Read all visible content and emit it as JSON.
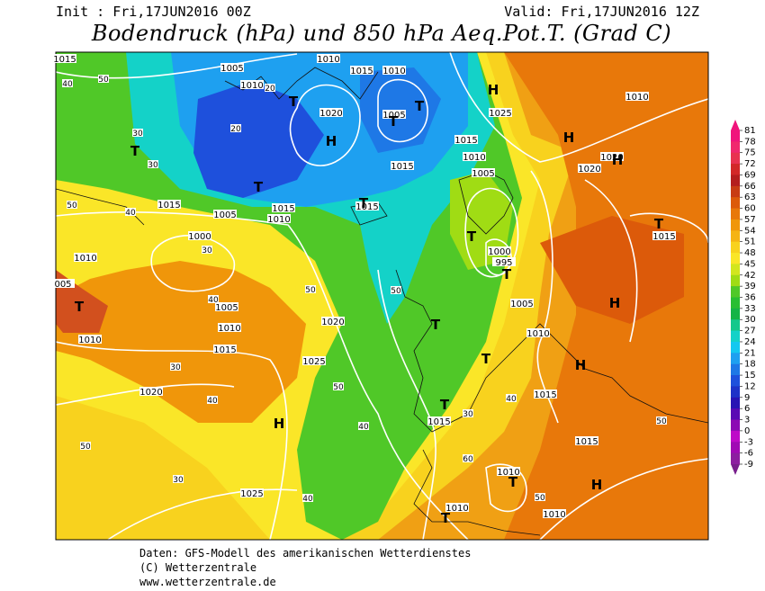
{
  "header": {
    "init": "Init : Fri,17JUN2016 00Z",
    "valid": "Valid: Fri,17JUN2016 12Z",
    "title": "Bodendruck (hPa) und 850 hPa Aeq.Pot.T. (Grad C)"
  },
  "legend": {
    "labels": [
      81,
      78,
      75,
      72,
      69,
      66,
      63,
      60,
      57,
      54,
      51,
      48,
      45,
      42,
      39,
      36,
      33,
      30,
      27,
      24,
      21,
      18,
      15,
      12,
      9,
      6,
      3,
      0,
      -3,
      -6,
      -9
    ],
    "colors": [
      "#f0147c",
      "#f0286e",
      "#e83250",
      "#d22828",
      "#b41e1e",
      "#c83c14",
      "#dc5a0a",
      "#e8780a",
      "#f0960a",
      "#f5b414",
      "#f8d21e",
      "#fae628",
      "#d2e61e",
      "#a0dc14",
      "#50c828",
      "#28be32",
      "#14b446",
      "#14c88c",
      "#14d2c8",
      "#14c8f0",
      "#1ea0f0",
      "#1e78e6",
      "#1e50dc",
      "#1e32c8",
      "#2814b4",
      "#5a0ab4",
      "#8c0ab4",
      "#be0ac8",
      "#a00ab4",
      "#8c1ea0",
      "#781e8c"
    ]
  },
  "pressure_labels": [
    "1015",
    "1005",
    "1010",
    "1010",
    "1015",
    "1010",
    "1020",
    "1005",
    "1025",
    "1010",
    "1015",
    "1010",
    "1015",
    "1005",
    "1020",
    "1020",
    "1015",
    "1005",
    "1015",
    "1010",
    "1015",
    "1000",
    "1010",
    "1000",
    "995",
    "1015",
    "1005",
    "1005",
    "1010",
    "1015",
    "1010",
    "1020",
    "1025",
    "1010",
    "1020",
    "1015",
    "1015",
    "1015",
    "1010",
    "1025",
    "1010",
    "1010",
    "005"
  ],
  "temperature_labels": [
    "40",
    "50",
    "30",
    "20",
    "20",
    "30",
    "40",
    "50",
    "30",
    "40",
    "50",
    "30",
    "40",
    "50",
    "30",
    "40",
    "50",
    "40",
    "50",
    "30",
    "40",
    "50",
    "60",
    "50"
  ],
  "centers": [
    "T",
    "T",
    "H",
    "T",
    "T",
    "T",
    "H",
    "H",
    "H",
    "T",
    "T",
    "T",
    "T",
    "H",
    "T",
    "H",
    "T",
    "H",
    "T",
    "T",
    "H",
    "T",
    "T"
  ],
  "footer": {
    "line1": "Daten: GFS-Modell des amerikanischen Wetterdienstes",
    "line2": "(C) Wetterzentrale",
    "line3": "www.wetterzentrale.de"
  }
}
